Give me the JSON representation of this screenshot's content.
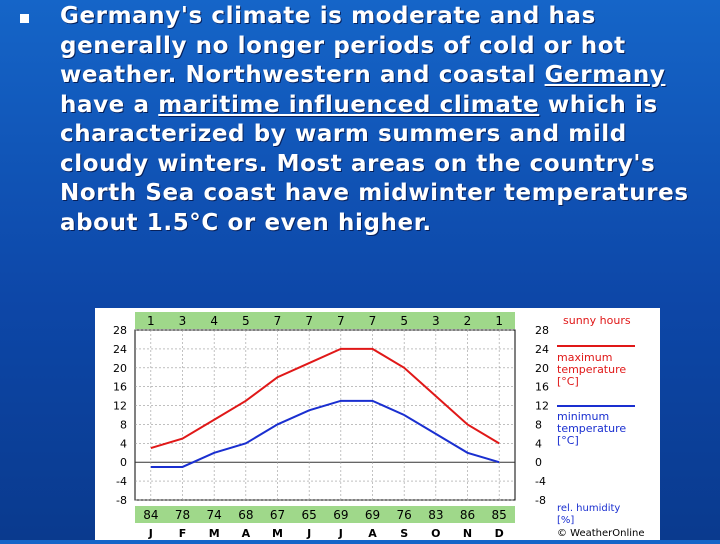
{
  "text": {
    "s1": "Germany's climate is moderate and has generally no longer periods of cold or hot weather. Northwestern and coastal ",
    "link1": "Germany",
    "s2": " have a ",
    "link2": "maritime influenced climate",
    "s3": " which is characterized by warm summers and mild cloudy winters. Most areas on the country's North Sea coast have midwinter temperatures about 1.5°C or even higher."
  },
  "chart_data": {
    "type": "line",
    "categories": [
      "J",
      "F",
      "M",
      "A",
      "M",
      "J",
      "J",
      "A",
      "S",
      "O",
      "N",
      "D"
    ],
    "sunny_hours": [
      "1",
      "3",
      "4",
      "5",
      "7",
      "7",
      "7",
      "7",
      "5",
      "3",
      "2",
      "1"
    ],
    "humidity": [
      "84",
      "78",
      "74",
      "68",
      "67",
      "65",
      "69",
      "69",
      "76",
      "83",
      "86",
      "85"
    ],
    "y_ticks": [
      "28",
      "24",
      "20",
      "16",
      "12",
      "8",
      "4",
      "0",
      "-4",
      "-8"
    ],
    "ylim": [
      -8,
      28
    ],
    "series": [
      {
        "name": "maximum temperature [°C]",
        "color": "#e01818",
        "values": [
          3,
          5,
          9,
          13,
          18,
          21,
          24,
          24,
          20,
          14,
          8,
          4
        ]
      },
      {
        "name": "minimum temperature [°C]",
        "color": "#1a2fd0",
        "values": [
          -1,
          -1,
          2,
          4,
          8,
          11,
          13,
          13,
          10,
          6,
          2,
          0
        ]
      }
    ],
    "legend": {
      "sunny": "sunny hours",
      "max1": "maximum",
      "max2": "temperature",
      "max3": "[°C]",
      "min1": "minimum",
      "min2": "temperature",
      "min3": "[°C]",
      "hum1": "rel. humidity",
      "hum2": "[%]",
      "credit": "© WeatherOnline"
    }
  }
}
